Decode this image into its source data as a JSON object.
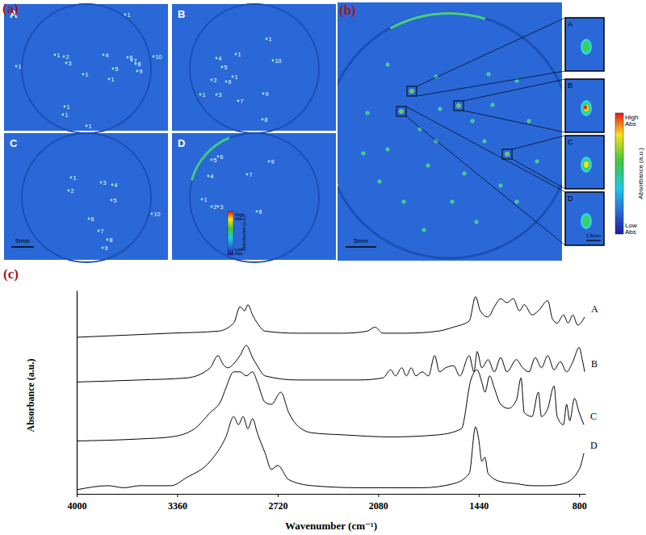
{
  "figure": {
    "panel_labels": [
      "(a)",
      "(b)",
      "(c)"
    ],
    "panel_a": {
      "subpanels": [
        {
          "label": "A",
          "particles": [
            "1",
            "1",
            "2",
            "3",
            "4",
            "6",
            "7",
            "8",
            "10",
            "1",
            "1",
            "5",
            "9",
            "1",
            "1",
            "1",
            "1"
          ]
        },
        {
          "label": "B",
          "particles": [
            "1",
            "10",
            "4",
            "5",
            "2",
            "6",
            "1",
            "3",
            "1",
            "9",
            "7",
            "8",
            "1"
          ]
        },
        {
          "label": "C",
          "particles": [
            "1",
            "2",
            "3",
            "4",
            "5",
            "6",
            "10",
            "7",
            "8",
            "9"
          ]
        },
        {
          "label": "D",
          "particles": [
            "5",
            "6",
            "9",
            "4",
            "7",
            "1",
            "2",
            "3",
            "8"
          ]
        }
      ],
      "scale_bar": "5mm"
    },
    "panel_b": {
      "insets": [
        "A",
        "B",
        "C",
        "D"
      ],
      "scale_bar": "5mm",
      "inset_scale_bar": "1.5mm"
    },
    "colorbar": {
      "high": "High Abs",
      "title": "Absorbance (a.u.)",
      "low": "Low Abs"
    }
  },
  "chart_data": {
    "type": "line",
    "x_label": "Wavenumber (cm⁻¹)",
    "y_label": "Absorbance (a.u.)",
    "xlim": [
      4000,
      760
    ],
    "xticks": [
      4000,
      3360,
      2720,
      2080,
      1440,
      800
    ],
    "ylim": [
      0,
      100
    ],
    "tick_labels": "x",
    "series": [
      {
        "name": "A",
        "color": "#000000",
        "x": [
          4000,
          3700,
          3400,
          3100,
          3000,
          2960,
          2930,
          2910,
          2880,
          2850,
          2800,
          2600,
          2300,
          2150,
          2100,
          2050,
          1900,
          1700,
          1600,
          1500,
          1460,
          1430,
          1380,
          1340,
          1300,
          1260,
          1220,
          1180,
          1150,
          1100,
          1060,
          1000,
          970,
          940,
          900,
          870,
          840,
          810,
          780,
          765
        ],
        "values": [
          77,
          78,
          79,
          80,
          84,
          92,
          90,
          93,
          88,
          84,
          80,
          79,
          79,
          80,
          82,
          79,
          79,
          80,
          82,
          85,
          97,
          90,
          87,
          92,
          96,
          94,
          96,
          90,
          93,
          88,
          90,
          95,
          86,
          84,
          88,
          84,
          88,
          83,
          85,
          87
        ]
      },
      {
        "name": "B",
        "color": "#000000",
        "x": [
          4000,
          3600,
          3300,
          3150,
          3100,
          3070,
          3040,
          2960,
          2920,
          2880,
          2850,
          2800,
          2600,
          2200,
          2050,
          2000,
          1970,
          1930,
          1900,
          1870,
          1840,
          1800,
          1760,
          1720,
          1690,
          1650,
          1600,
          1560,
          1500,
          1470,
          1450,
          1420,
          1380,
          1340,
          1300,
          1260,
          1200,
          1160,
          1120,
          1080,
          1040,
          1000,
          960,
          920,
          880,
          840,
          800,
          780,
          765
        ],
        "values": [
          55,
          56,
          57,
          62,
          68,
          64,
          62,
          68,
          73,
          67,
          63,
          58,
          56,
          56,
          57,
          61,
          58,
          62,
          58,
          62,
          58,
          60,
          58,
          68,
          60,
          62,
          63,
          58,
          68,
          60,
          70,
          62,
          66,
          60,
          67,
          60,
          66,
          62,
          60,
          67,
          62,
          68,
          61,
          65,
          60,
          65,
          72,
          66,
          60
        ]
      },
      {
        "name": "C",
        "color": "#000000",
        "x": [
          4000,
          3600,
          3400,
          3250,
          3150,
          3080,
          3050,
          3000,
          2960,
          2920,
          2880,
          2850,
          2800,
          2760,
          2700,
          2650,
          2600,
          2500,
          2300,
          2000,
          1700,
          1550,
          1490,
          1450,
          1420,
          1400,
          1370,
          1340,
          1300,
          1250,
          1200,
          1170,
          1150,
          1100,
          1060,
          1040,
          1000,
          960,
          940,
          900,
          880,
          860,
          830,
          800,
          770
        ],
        "values": [
          26,
          27,
          28,
          32,
          40,
          46,
          52,
          60,
          60,
          58,
          60,
          55,
          45,
          44,
          50,
          40,
          34,
          30,
          29,
          28,
          29,
          32,
          56,
          61,
          55,
          50,
          58,
          52,
          44,
          42,
          46,
          57,
          40,
          38,
          50,
          38,
          42,
          53,
          38,
          34,
          44,
          36,
          47,
          40,
          34
        ]
      },
      {
        "name": "D",
        "color": "#000000",
        "x": [
          4000,
          3800,
          3700,
          3600,
          3400,
          3300,
          3150,
          3050,
          3000,
          2970,
          2940,
          2910,
          2880,
          2850,
          2800,
          2760,
          2720,
          2650,
          2500,
          2200,
          2000,
          1800,
          1600,
          1500,
          1460,
          1440,
          1420,
          1400,
          1380,
          1300,
          1200,
          1100,
          1000,
          900,
          800,
          770
        ],
        "values": [
          2,
          4,
          3,
          4,
          4,
          8,
          16,
          28,
          38,
          34,
          38,
          32,
          37,
          30,
          20,
          12,
          14,
          7,
          4,
          3,
          3,
          3,
          5,
          10,
          33,
          27,
          16,
          18,
          10,
          6,
          5,
          4,
          4,
          5,
          12,
          20
        ]
      }
    ]
  }
}
